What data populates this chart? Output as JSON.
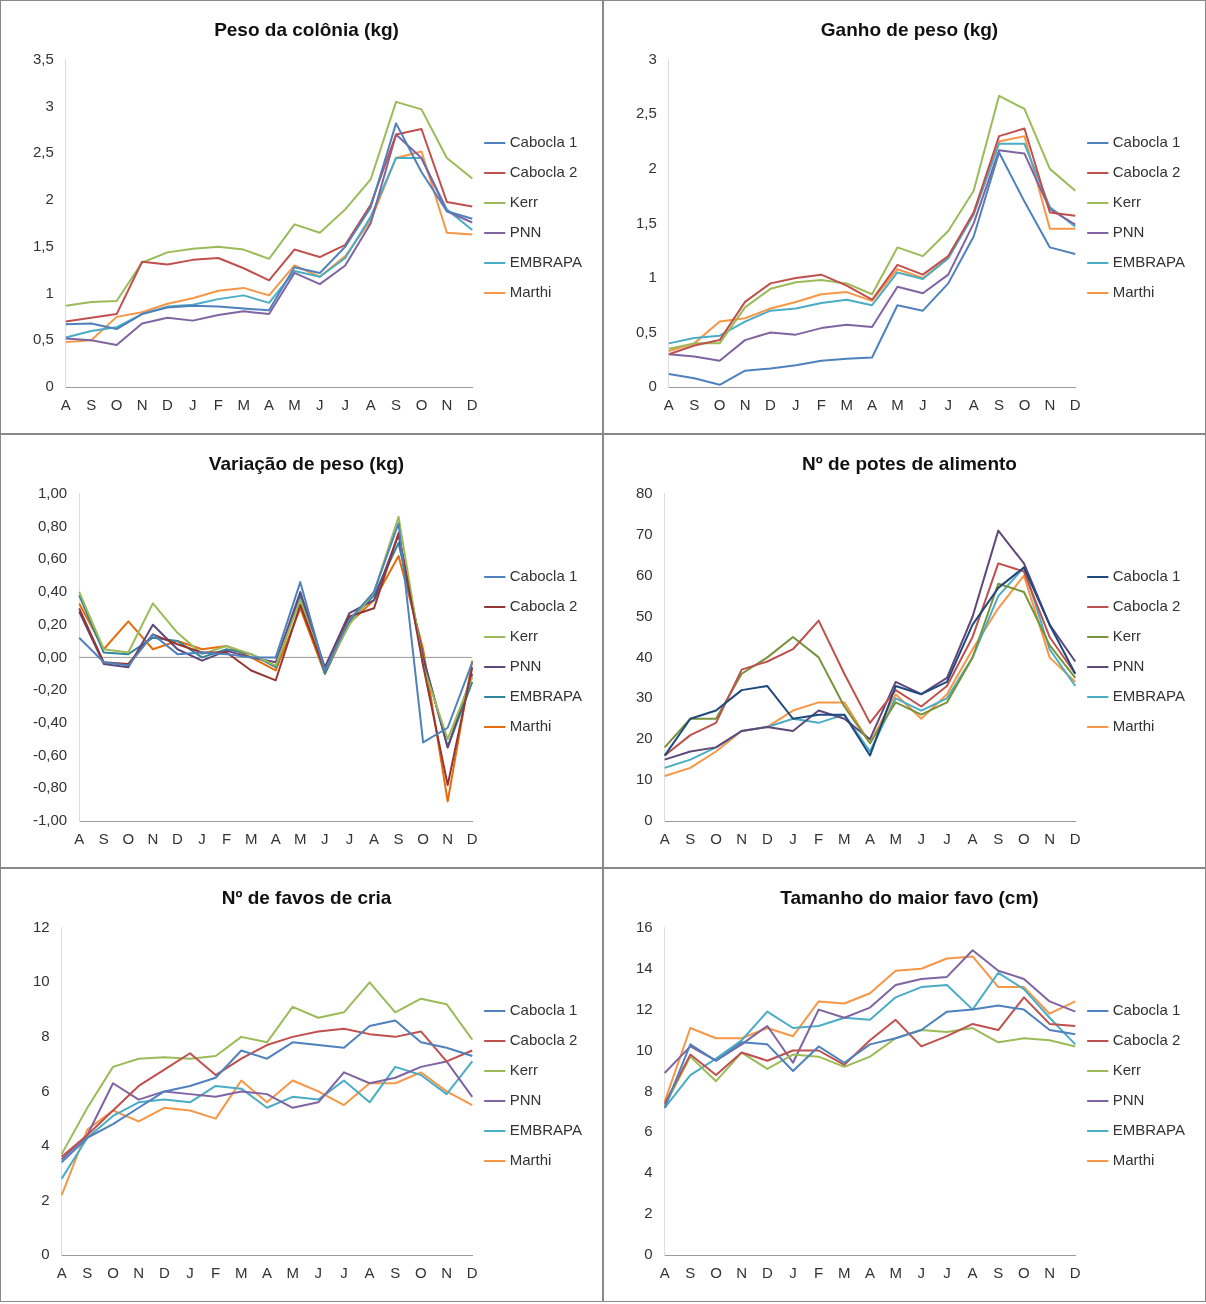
{
  "chart_data": [
    {
      "type": "line",
      "title": "Peso da colônia (kg)",
      "categories": [
        "A",
        "S",
        "O",
        "N",
        "D",
        "J",
        "F",
        "M",
        "A",
        "M",
        "J",
        "J",
        "A",
        "S",
        "O",
        "N",
        "D"
      ],
      "ylim": [
        0,
        3.5
      ],
      "yticks": [
        0,
        {
          "value": 0.5,
          "label": "0,5"
        },
        1,
        {
          "value": 1.5,
          "label": "1,5"
        },
        2,
        {
          "value": 2.5,
          "label": "2,5"
        },
        3,
        {
          "value": 3.5,
          "label": "3,5"
        }
      ],
      "grid": false,
      "legend": "right",
      "series": [
        {
          "name": "Cabocla 1",
          "color": "#4f81bd",
          "values": [
            0.67,
            0.68,
            0.62,
            0.78,
            0.85,
            0.87,
            0.86,
            0.84,
            0.82,
            1.28,
            1.22,
            1.5,
            1.92,
            2.82,
            2.3,
            1.88,
            1.8
          ]
        },
        {
          "name": "Cabocla 2",
          "color": "#c0504d",
          "values": [
            0.7,
            0.74,
            0.78,
            1.34,
            1.31,
            1.36,
            1.38,
            1.27,
            1.14,
            1.47,
            1.39,
            1.52,
            1.95,
            2.7,
            2.76,
            1.98,
            1.93
          ]
        },
        {
          "name": "Kerr",
          "color": "#9bbb59",
          "values": [
            0.87,
            0.91,
            0.92,
            1.33,
            1.44,
            1.48,
            1.5,
            1.47,
            1.37,
            1.74,
            1.65,
            1.9,
            2.22,
            3.05,
            2.97,
            2.45,
            2.23
          ]
        },
        {
          "name": "PNN",
          "color": "#8064a2",
          "values": [
            0.52,
            0.5,
            0.45,
            0.68,
            0.74,
            0.71,
            0.77,
            0.81,
            0.78,
            1.22,
            1.1,
            1.3,
            1.75,
            2.7,
            2.45,
            1.88,
            1.76
          ]
        },
        {
          "name": "EMBRAPA",
          "color": "#4bacc6",
          "values": [
            0.53,
            0.6,
            0.64,
            0.78,
            0.86,
            0.88,
            0.94,
            0.98,
            0.9,
            1.24,
            1.18,
            1.38,
            1.82,
            2.45,
            2.45,
            1.9,
            1.68
          ]
        },
        {
          "name": "Marthi",
          "color": "#f79646",
          "values": [
            0.48,
            0.5,
            0.75,
            0.8,
            0.89,
            0.95,
            1.03,
            1.06,
            0.98,
            1.3,
            1.18,
            1.4,
            1.78,
            2.45,
            2.52,
            1.65,
            1.63
          ]
        }
      ]
    },
    {
      "type": "line",
      "title": "Ganho de peso (kg)",
      "categories": [
        "A",
        "S",
        "O",
        "N",
        "D",
        "J",
        "F",
        "M",
        "A",
        "M",
        "J",
        "J",
        "A",
        "S",
        "O",
        "N",
        "D"
      ],
      "ylim": [
        0,
        3
      ],
      "yticks": [
        0,
        {
          "value": 0.5,
          "label": "0,5"
        },
        1,
        {
          "value": 1.5,
          "label": "1,5"
        },
        2,
        {
          "value": 2.5,
          "label": "2,5"
        },
        3
      ],
      "grid": false,
      "legend": "right",
      "series": [
        {
          "name": "Cabocla 1",
          "color": "#4f81bd",
          "values": [
            0.12,
            0.08,
            0.02,
            0.15,
            0.17,
            0.2,
            0.24,
            0.26,
            0.27,
            0.75,
            0.7,
            0.95,
            1.38,
            2.15,
            1.7,
            1.28,
            1.22
          ]
        },
        {
          "name": "Cabocla 2",
          "color": "#c0504d",
          "values": [
            0.3,
            0.38,
            0.43,
            0.78,
            0.95,
            1.0,
            1.03,
            0.93,
            0.8,
            1.12,
            1.03,
            1.2,
            1.6,
            2.3,
            2.37,
            1.6,
            1.57
          ]
        },
        {
          "name": "Kerr",
          "color": "#9bbb59",
          "values": [
            0.35,
            0.4,
            0.4,
            0.73,
            0.9,
            0.96,
            0.98,
            0.95,
            0.85,
            1.28,
            1.2,
            1.43,
            1.8,
            2.67,
            2.55,
            2.0,
            1.8
          ]
        },
        {
          "name": "PNN",
          "color": "#8064a2",
          "values": [
            0.3,
            0.28,
            0.24,
            0.43,
            0.5,
            0.48,
            0.54,
            0.57,
            0.55,
            0.92,
            0.86,
            1.03,
            1.5,
            2.17,
            2.14,
            1.63,
            1.49
          ]
        },
        {
          "name": "EMBRAPA",
          "color": "#4bacc6",
          "values": [
            0.4,
            0.45,
            0.47,
            0.6,
            0.7,
            0.72,
            0.77,
            0.8,
            0.75,
            1.05,
            0.99,
            1.18,
            1.58,
            2.23,
            2.23,
            1.65,
            1.47
          ]
        },
        {
          "name": "Marthi",
          "color": "#f79646",
          "values": [
            0.33,
            0.4,
            0.6,
            0.63,
            0.72,
            0.78,
            0.85,
            0.87,
            0.79,
            1.08,
            1.0,
            1.18,
            1.6,
            2.25,
            2.3,
            1.45,
            1.45
          ]
        }
      ]
    },
    {
      "type": "line",
      "title": "Variação de peso (kg)",
      "ref_lines": [
        {
          "axis": "y",
          "value": 0
        }
      ],
      "categories": [
        "A",
        "S",
        "O",
        "N",
        "D",
        "J",
        "F",
        "M",
        "A",
        "M",
        "J",
        "J",
        "A",
        "S",
        "O",
        "N",
        "D"
      ],
      "ylim": [
        -1,
        1
      ],
      "yticks": [
        {
          "value": -1,
          "label": "-1,00"
        },
        {
          "value": -0.8,
          "label": "-0,80"
        },
        {
          "value": -0.6,
          "label": "-0,60"
        },
        {
          "value": -0.4,
          "label": "-0,40"
        },
        {
          "value": -0.2,
          "label": "-0,20"
        },
        {
          "value": 0,
          "label": "0,00"
        },
        {
          "value": 0.2,
          "label": "0,20"
        },
        {
          "value": 0.4,
          "label": "0,40"
        },
        {
          "value": 0.6,
          "label": "0,60"
        },
        {
          "value": 0.8,
          "label": "0,80"
        },
        {
          "value": 1,
          "label": "1,00"
        }
      ],
      "grid": false,
      "legend": "right",
      "series": [
        {
          "name": "Cabocla 1",
          "color": "#4f81bd",
          "values": [
            0.12,
            -0.03,
            -0.05,
            0.14,
            0.02,
            0.03,
            0.02,
            0.0,
            0.0,
            0.46,
            -0.08,
            0.23,
            0.4,
            0.82,
            -0.52,
            -0.43,
            -0.03
          ]
        },
        {
          "name": "Cabocla 2",
          "color": "#943634",
          "values": [
            0.3,
            -0.03,
            -0.04,
            0.14,
            0.08,
            0.03,
            0.03,
            -0.08,
            -0.14,
            0.32,
            -0.08,
            0.25,
            0.3,
            0.76,
            -0.05,
            -0.78,
            -0.06
          ]
        },
        {
          "name": "Kerr",
          "color": "#9bbb59",
          "values": [
            0.4,
            0.05,
            0.03,
            0.33,
            0.15,
            0.02,
            0.07,
            0.02,
            -0.05,
            0.35,
            -0.08,
            0.2,
            0.4,
            0.86,
            -0.05,
            -0.5,
            -0.12
          ]
        },
        {
          "name": "PNN",
          "color": "#5f497a",
          "values": [
            0.28,
            -0.04,
            -0.06,
            0.2,
            0.05,
            -0.02,
            0.04,
            0.0,
            -0.03,
            0.4,
            -0.06,
            0.27,
            0.35,
            0.75,
            0.0,
            -0.55,
            -0.1
          ]
        },
        {
          "name": "EMBRAPA",
          "color": "#31859c",
          "values": [
            0.38,
            0.03,
            0.02,
            0.12,
            0.1,
            0.0,
            0.05,
            0.02,
            -0.06,
            0.38,
            -0.1,
            0.22,
            0.38,
            0.7,
            0.0,
            -0.55,
            -0.15
          ]
        },
        {
          "name": "Marthi",
          "color": "#e46c0a",
          "values": [
            0.33,
            0.05,
            0.22,
            0.05,
            0.1,
            0.05,
            0.07,
            0.0,
            -0.08,
            0.3,
            -0.1,
            0.21,
            0.35,
            0.62,
            0.05,
            -0.88,
            -0.02
          ]
        }
      ]
    },
    {
      "type": "line",
      "title": "Nº de potes de alimento",
      "categories": [
        "A",
        "S",
        "O",
        "N",
        "D",
        "J",
        "F",
        "M",
        "A",
        "M",
        "J",
        "J",
        "A",
        "S",
        "O",
        "N",
        "D"
      ],
      "ylim": [
        0,
        80
      ],
      "yticks": [
        0,
        10,
        20,
        30,
        40,
        50,
        60,
        70,
        80
      ],
      "grid": false,
      "legend": "right",
      "series": [
        {
          "name": "Cabocla 1",
          "color": "#1f497d",
          "values": [
            16,
            25,
            27,
            32,
            33,
            25,
            26,
            26,
            16,
            33,
            31,
            34,
            48,
            57,
            62,
            48,
            36
          ]
        },
        {
          "name": "Cabocla 2",
          "color": "#c0504d",
          "values": [
            16,
            21,
            24,
            37,
            39,
            42,
            49,
            36,
            24,
            32,
            28,
            33,
            45,
            63,
            61,
            45,
            36
          ]
        },
        {
          "name": "Kerr",
          "color": "#77933c",
          "values": [
            18,
            25,
            25,
            36,
            40,
            45,
            40,
            28,
            19,
            29,
            26,
            29,
            40,
            58,
            56,
            43,
            35
          ]
        },
        {
          "name": "PNN",
          "color": "#5f497a",
          "values": [
            15,
            17,
            18,
            22,
            23,
            22,
            27,
            25,
            20,
            34,
            31,
            35,
            50,
            71,
            63,
            48,
            39
          ]
        },
        {
          "name": "EMBRAPA",
          "color": "#4bacc6",
          "values": [
            13,
            15,
            18,
            22,
            23,
            25,
            24,
            26,
            17,
            30,
            27,
            30,
            40,
            55,
            62,
            42,
            33
          ]
        },
        {
          "name": "Marthi",
          "color": "#f79646",
          "values": [
            11,
            13,
            17,
            22,
            23,
            27,
            29,
            29,
            19,
            31,
            25,
            31,
            42,
            52,
            60,
            40,
            34
          ]
        }
      ]
    },
    {
      "type": "line",
      "title": "Nº de favos de cria",
      "categories": [
        "A",
        "S",
        "O",
        "N",
        "D",
        "J",
        "F",
        "M",
        "A",
        "M",
        "J",
        "J",
        "A",
        "S",
        "O",
        "N",
        "D"
      ],
      "ylim": [
        0,
        12
      ],
      "yticks": [
        0,
        2,
        4,
        6,
        8,
        10,
        12
      ],
      "grid": false,
      "legend": "right",
      "series": [
        {
          "name": "Cabocla 1",
          "color": "#4f81bd",
          "values": [
            3.4,
            4.3,
            4.8,
            5.4,
            6.0,
            6.2,
            6.5,
            7.5,
            7.2,
            7.8,
            7.7,
            7.6,
            8.4,
            8.6,
            7.8,
            7.6,
            7.3
          ]
        },
        {
          "name": "Cabocla 2",
          "color": "#c0504d",
          "values": [
            3.6,
            4.4,
            5.3,
            6.2,
            6.8,
            7.4,
            6.6,
            7.2,
            7.7,
            8.0,
            8.2,
            8.3,
            8.1,
            8.0,
            8.2,
            7.1,
            7.5
          ]
        },
        {
          "name": "Kerr",
          "color": "#9bbb59",
          "values": [
            3.7,
            5.4,
            6.9,
            7.2,
            7.25,
            7.2,
            7.3,
            8.0,
            7.8,
            9.1,
            8.7,
            8.9,
            10.0,
            8.9,
            9.4,
            9.2,
            7.9
          ]
        },
        {
          "name": "PNN",
          "color": "#8064a2",
          "values": [
            3.5,
            4.4,
            6.3,
            5.7,
            6.0,
            5.9,
            5.8,
            6.0,
            5.9,
            5.4,
            5.6,
            6.7,
            6.3,
            6.5,
            6.9,
            7.1,
            5.8
          ]
        },
        {
          "name": "EMBRAPA",
          "color": "#4bacc6",
          "values": [
            2.8,
            4.3,
            5.1,
            5.6,
            5.7,
            5.6,
            6.2,
            6.1,
            5.4,
            5.8,
            5.7,
            6.4,
            5.6,
            6.9,
            6.6,
            5.9,
            7.1
          ]
        },
        {
          "name": "Marthi",
          "color": "#f79646",
          "values": [
            2.2,
            4.6,
            5.3,
            4.9,
            5.4,
            5.3,
            5.0,
            6.4,
            5.6,
            6.4,
            6.0,
            5.5,
            6.3,
            6.3,
            6.7,
            6.0,
            5.5
          ]
        }
      ]
    },
    {
      "type": "line",
      "title": "Tamanho do maior favo (cm)",
      "categories": [
        "A",
        "S",
        "O",
        "N",
        "D",
        "J",
        "F",
        "M",
        "A",
        "M",
        "J",
        "J",
        "A",
        "S",
        "O",
        "N",
        "D"
      ],
      "ylim": [
        0,
        16
      ],
      "yticks": [
        0,
        2,
        4,
        6,
        8,
        10,
        12,
        14,
        16
      ],
      "grid": false,
      "legend": "right",
      "series": [
        {
          "name": "Cabocla 1",
          "color": "#4f81bd",
          "values": [
            7.2,
            10.3,
            9.5,
            10.4,
            10.3,
            9.0,
            10.2,
            9.4,
            10.3,
            10.6,
            11.0,
            11.9,
            12.0,
            12.2,
            12.0,
            11.0,
            10.8
          ]
        },
        {
          "name": "Cabocla 2",
          "color": "#c0504d",
          "values": [
            7.4,
            9.8,
            8.8,
            9.9,
            9.5,
            10.0,
            10.0,
            9.3,
            10.5,
            11.5,
            10.2,
            10.7,
            11.3,
            11.0,
            12.6,
            11.3,
            11.2
          ]
        },
        {
          "name": "Kerr",
          "color": "#9bbb59",
          "values": [
            7.3,
            9.7,
            8.5,
            9.9,
            9.1,
            9.8,
            9.7,
            9.2,
            9.7,
            10.6,
            11.0,
            10.9,
            11.1,
            10.4,
            10.6,
            10.5,
            10.2
          ]
        },
        {
          "name": "PNN",
          "color": "#8064a2",
          "values": [
            8.9,
            10.2,
            9.5,
            10.3,
            11.2,
            9.4,
            12.0,
            11.6,
            12.1,
            13.2,
            13.5,
            13.6,
            14.9,
            13.9,
            13.5,
            12.4,
            11.9
          ]
        },
        {
          "name": "EMBRAPA",
          "color": "#4bacc6",
          "values": [
            7.2,
            8.8,
            9.6,
            10.5,
            11.9,
            11.1,
            11.2,
            11.6,
            11.5,
            12.6,
            13.1,
            13.2,
            12.0,
            13.8,
            13.0,
            11.6,
            10.3
          ]
        },
        {
          "name": "Marthi",
          "color": "#f79646",
          "values": [
            7.5,
            11.1,
            10.6,
            10.6,
            11.1,
            10.7,
            12.4,
            12.3,
            12.8,
            13.9,
            14.0,
            14.5,
            14.6,
            13.1,
            13.1,
            11.8,
            12.4
          ]
        }
      ]
    }
  ]
}
